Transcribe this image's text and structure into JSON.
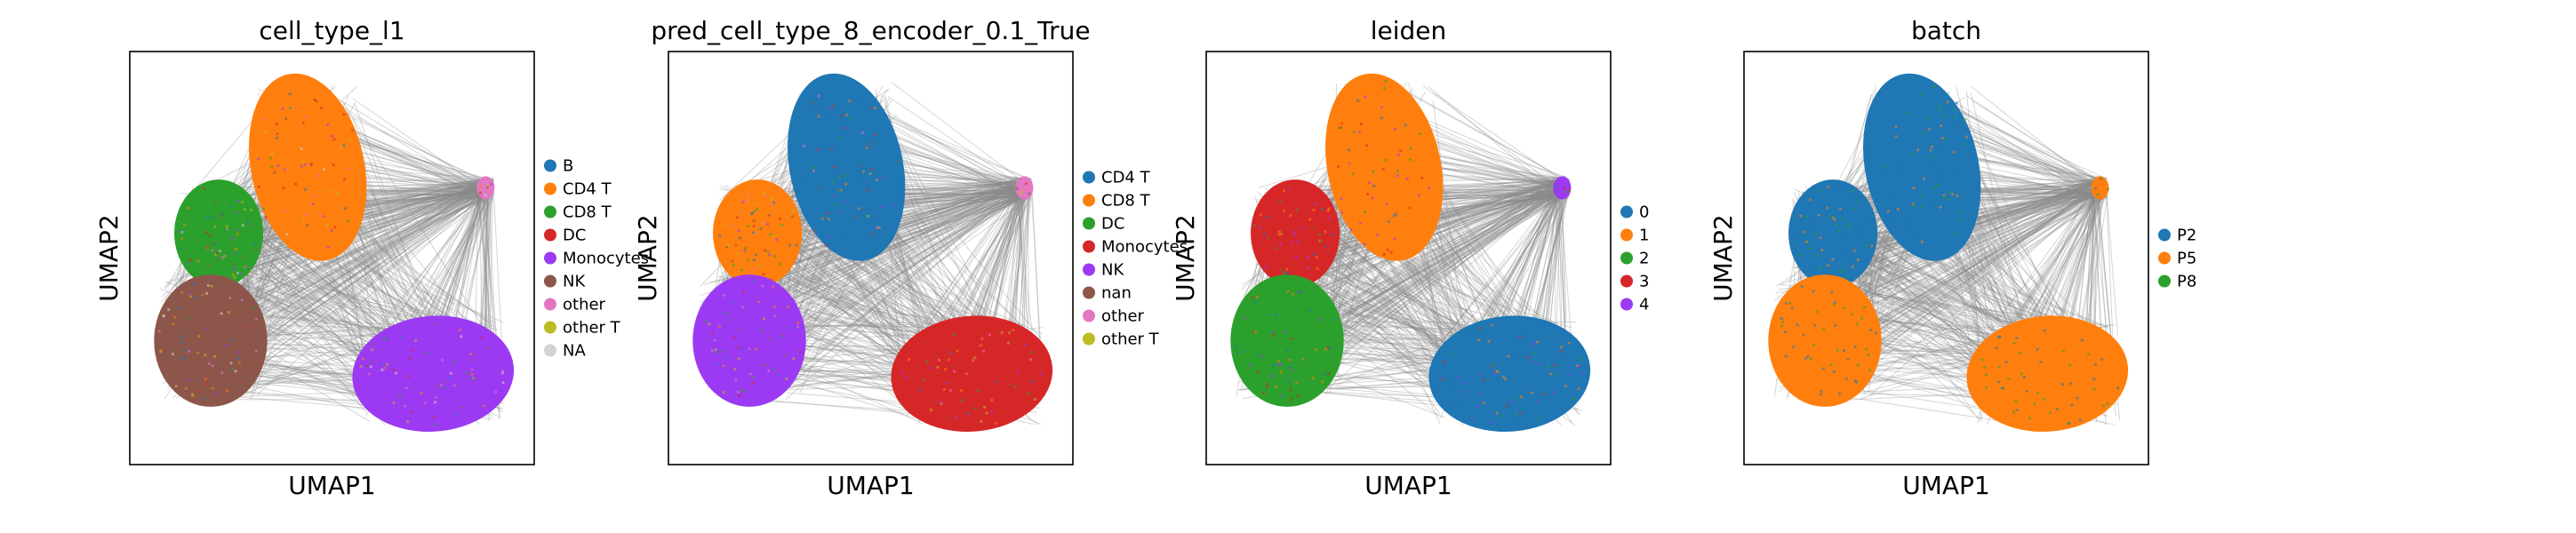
{
  "panels": [
    {
      "title": "cell_type_l1",
      "xlabel": "UMAP1",
      "ylabel": "UMAP2",
      "legend": [
        "B",
        "CD4 T",
        "CD8 T",
        "DC",
        "Monocytes",
        "NK",
        "other",
        "other T",
        "NA"
      ],
      "legend_colors": [
        "#1f77b4",
        "#ff7f0e",
        "#2ca02c",
        "#d62728",
        "#9b3af2",
        "#8c564b",
        "#e377c2",
        "#bcbd22",
        "#d3d3d3"
      ],
      "clusters": [
        {
          "name": "top-center",
          "color": "#ff7f0e"
        },
        {
          "name": "left-upper",
          "color": "#2ca02c"
        },
        {
          "name": "left-lower",
          "color": "#8c564b"
        },
        {
          "name": "bottom-right",
          "color": "#9b3af2"
        },
        {
          "name": "top-right-small",
          "color": "#e377c2"
        }
      ]
    },
    {
      "title": "pred_cell_type_8_encoder_0.1_True",
      "xlabel": "UMAP1",
      "ylabel": "UMAP2",
      "legend": [
        "CD4 T",
        "CD8 T",
        "DC",
        "Monocytes",
        "NK",
        "nan",
        "other",
        "other T"
      ],
      "legend_colors": [
        "#1f77b4",
        "#ff7f0e",
        "#2ca02c",
        "#d62728",
        "#9b3af2",
        "#8c564b",
        "#e377c2",
        "#bcbd22"
      ],
      "clusters": [
        {
          "name": "top-center",
          "color": "#1f77b4"
        },
        {
          "name": "left-upper",
          "color": "#ff7f0e"
        },
        {
          "name": "left-lower",
          "color": "#9b3af2"
        },
        {
          "name": "bottom-right",
          "color": "#d62728"
        },
        {
          "name": "top-right-small",
          "color": "#e377c2"
        }
      ]
    },
    {
      "title": "leiden",
      "xlabel": "UMAP1",
      "ylabel": "UMAP2",
      "legend": [
        "0",
        "1",
        "2",
        "3",
        "4"
      ],
      "legend_colors": [
        "#1f77b4",
        "#ff7f0e",
        "#2ca02c",
        "#d62728",
        "#9b3af2"
      ],
      "clusters": [
        {
          "name": "top-center",
          "color": "#ff7f0e"
        },
        {
          "name": "left-upper",
          "color": "#d62728"
        },
        {
          "name": "left-lower",
          "color": "#2ca02c"
        },
        {
          "name": "bottom-right",
          "color": "#1f77b4"
        },
        {
          "name": "top-right-small",
          "color": "#9b3af2"
        }
      ]
    },
    {
      "title": "batch",
      "xlabel": "UMAP1",
      "ylabel": "UMAP2",
      "legend": [
        "P2",
        "P5",
        "P8"
      ],
      "legend_colors": [
        "#1f77b4",
        "#ff7f0e",
        "#2ca02c"
      ],
      "clusters": [
        {
          "name": "top-center",
          "color": "#1f77b4"
        },
        {
          "name": "left-upper",
          "color": "#1f77b4"
        },
        {
          "name": "left-lower",
          "color": "#ff7f0e"
        },
        {
          "name": "bottom-right",
          "color": "#ff7f0e"
        },
        {
          "name": "top-right-small",
          "color": "#ff7f0e"
        }
      ]
    }
  ],
  "chart_data": [
    {
      "type": "scatter",
      "title": "cell_type_l1",
      "xlabel": "UMAP1",
      "ylabel": "UMAP2",
      "legend": [
        "B",
        "CD4 T",
        "CD8 T",
        "DC",
        "Monocytes",
        "NK",
        "other",
        "other T",
        "NA"
      ],
      "legend_placement": "right",
      "grid": false
    },
    {
      "type": "scatter",
      "title": "pred_cell_type_8_encoder_0.1_True",
      "xlabel": "UMAP1",
      "ylabel": "UMAP2",
      "legend": [
        "CD4 T",
        "CD8 T",
        "DC",
        "Monocytes",
        "NK",
        "nan",
        "other",
        "other T"
      ],
      "legend_placement": "right",
      "grid": false
    },
    {
      "type": "scatter",
      "title": "leiden",
      "xlabel": "UMAP1",
      "ylabel": "UMAP2",
      "legend": [
        "0",
        "1",
        "2",
        "3",
        "4"
      ],
      "legend_placement": "right",
      "grid": false
    },
    {
      "type": "scatter",
      "title": "batch",
      "xlabel": "UMAP1",
      "ylabel": "UMAP2",
      "legend": [
        "P2",
        "P5",
        "P8"
      ],
      "legend_placement": "right",
      "grid": false
    }
  ]
}
